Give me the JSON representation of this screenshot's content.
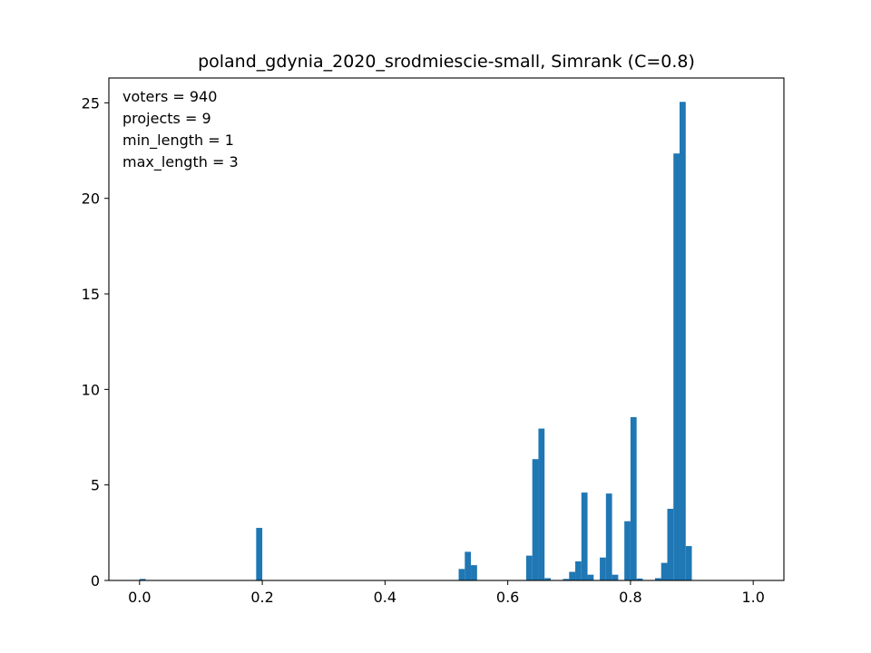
{
  "chart_data": {
    "type": "bar",
    "title": "poland_gdynia_2020_srodmiescie-small, Simrank (C=0.8)",
    "xlabel": "",
    "ylabel": "",
    "xlim": [
      -0.05,
      1.05
    ],
    "ylim": [
      0,
      26.3
    ],
    "xticks": [
      0.0,
      0.2,
      0.4,
      0.6,
      0.8,
      1.0
    ],
    "xtick_labels": [
      "0.0",
      "0.2",
      "0.4",
      "0.6",
      "0.8",
      "1.0"
    ],
    "yticks": [
      0,
      5,
      10,
      15,
      20,
      25
    ],
    "ytick_labels": [
      "0",
      "5",
      "10",
      "15",
      "20",
      "25"
    ],
    "bin_width": 0.01,
    "bar_color": "#1f77b4",
    "annotations": [
      "voters = 940",
      "projects = 9",
      "min_length = 1",
      "max_length = 3"
    ],
    "bins": [
      {
        "x": 0.0,
        "value": 0.08
      },
      {
        "x": 0.19,
        "value": 2.75
      },
      {
        "x": 0.52,
        "value": 0.6
      },
      {
        "x": 0.53,
        "value": 1.5
      },
      {
        "x": 0.54,
        "value": 0.8
      },
      {
        "x": 0.63,
        "value": 1.3
      },
      {
        "x": 0.64,
        "value": 6.35
      },
      {
        "x": 0.65,
        "value": 7.95
      },
      {
        "x": 0.66,
        "value": 0.12
      },
      {
        "x": 0.69,
        "value": 0.08
      },
      {
        "x": 0.7,
        "value": 0.45
      },
      {
        "x": 0.71,
        "value": 1.0
      },
      {
        "x": 0.72,
        "value": 4.6
      },
      {
        "x": 0.73,
        "value": 0.3
      },
      {
        "x": 0.75,
        "value": 1.2
      },
      {
        "x": 0.76,
        "value": 4.55
      },
      {
        "x": 0.77,
        "value": 0.3
      },
      {
        "x": 0.79,
        "value": 3.1
      },
      {
        "x": 0.8,
        "value": 8.55
      },
      {
        "x": 0.81,
        "value": 0.1
      },
      {
        "x": 0.84,
        "value": 0.12
      },
      {
        "x": 0.85,
        "value": 0.92
      },
      {
        "x": 0.86,
        "value": 3.75
      },
      {
        "x": 0.87,
        "value": 22.35
      },
      {
        "x": 0.88,
        "value": 25.05
      },
      {
        "x": 0.89,
        "value": 1.8
      }
    ]
  }
}
